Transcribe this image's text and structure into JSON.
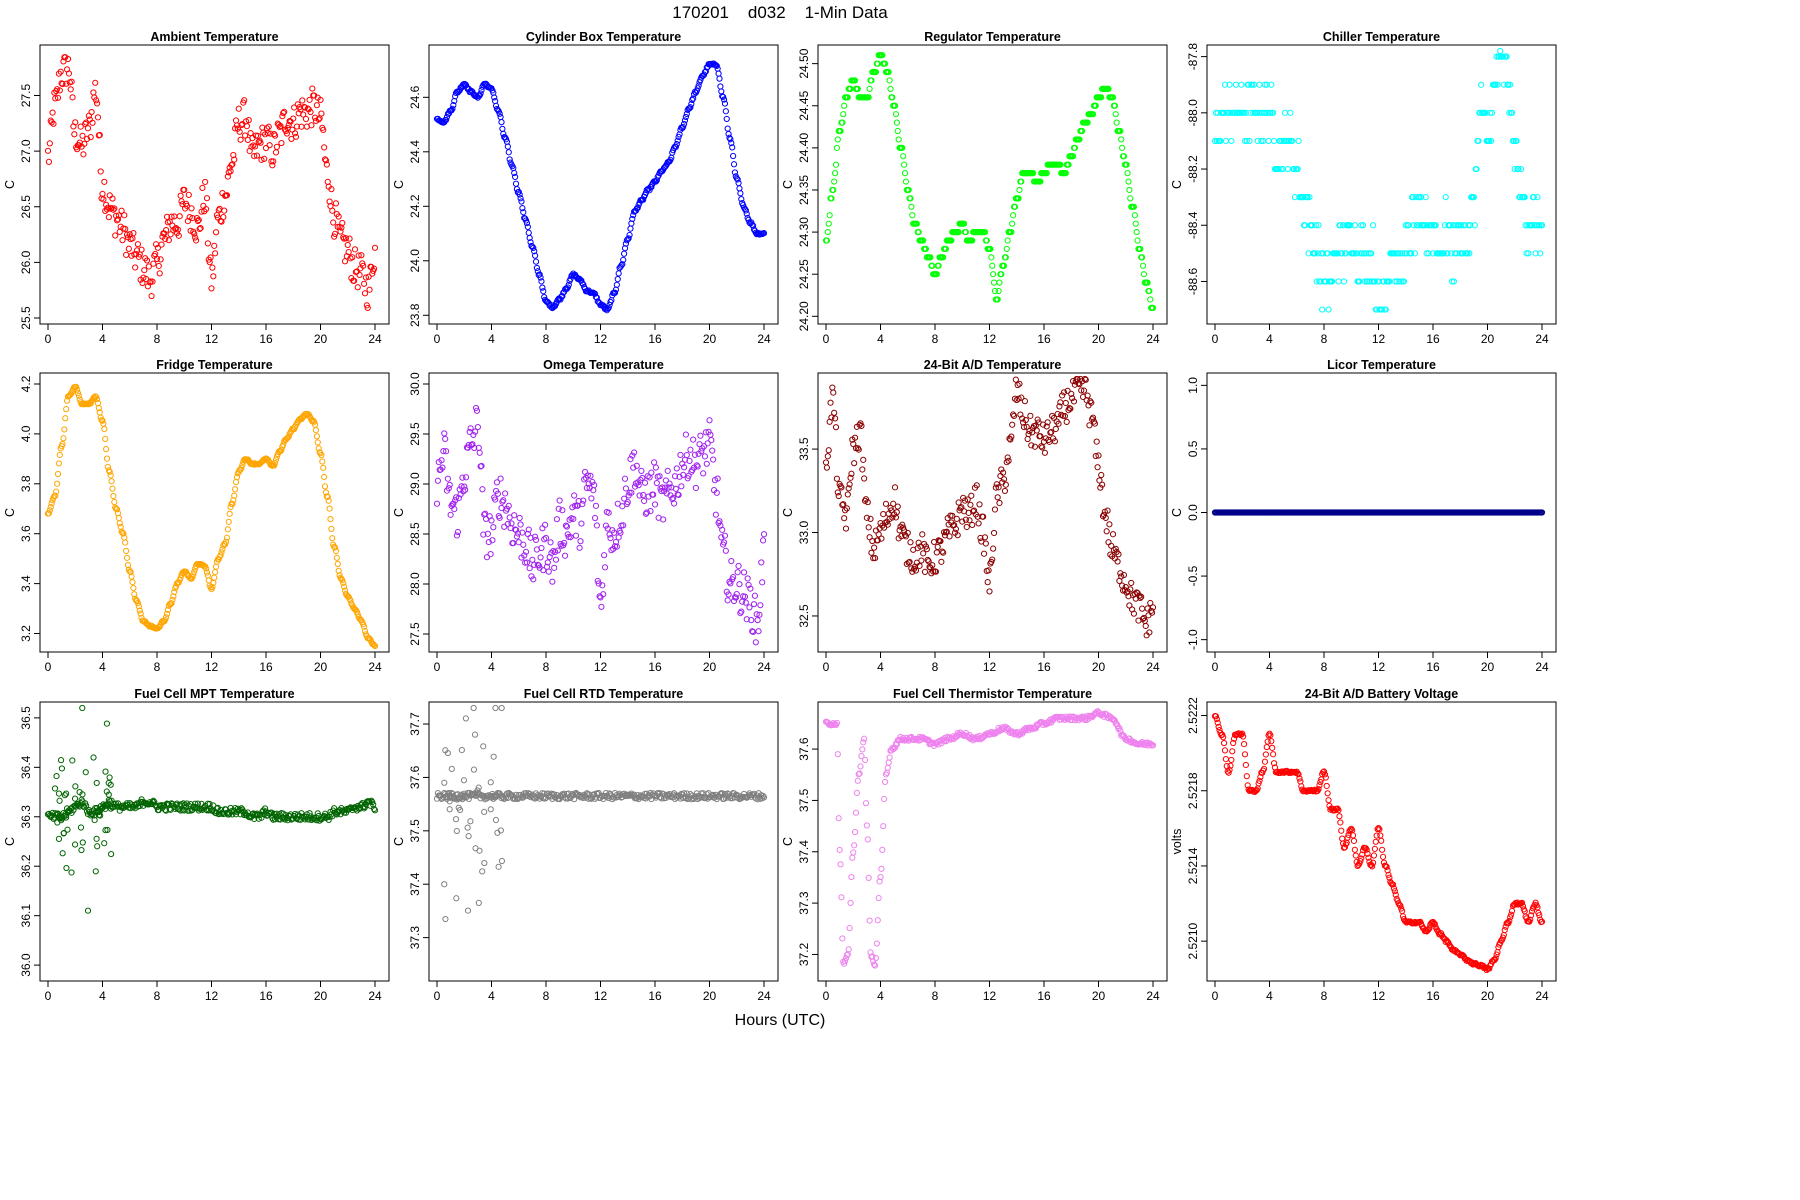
{
  "figure": {
    "title": "170201    d032    1-Min Data",
    "xlabel": "Hours (UTC)"
  },
  "chart_data": [
    {
      "type": "scatter",
      "title": "Ambient Temperature",
      "ylabel": "C",
      "color": "#ff0000",
      "xlim": [
        0,
        24
      ],
      "xticks": [
        0,
        4,
        8,
        12,
        16,
        20,
        24
      ],
      "ylim": [
        25.5,
        27.9
      ],
      "yticks": [
        "25.5",
        "26.0",
        "26.5",
        "27.0",
        "27.5"
      ],
      "x": [
        0,
        0.5,
        1,
        1.5,
        2,
        2.5,
        3,
        3.5,
        4,
        4.5,
        5,
        5.5,
        6,
        6.5,
        7,
        7.5,
        8,
        8.5,
        9,
        9.5,
        10,
        10.5,
        11,
        11.5,
        12,
        12.5,
        13,
        13.5,
        14,
        14.5,
        15,
        15.5,
        16,
        16.5,
        17,
        17.5,
        18,
        18.5,
        19,
        19.5,
        20,
        20.5,
        21,
        21.5,
        22,
        22.5,
        23,
        23.5,
        24
      ],
      "values": [
        26.95,
        27.4,
        27.7,
        27.75,
        27.15,
        27.05,
        27.2,
        27.55,
        26.7,
        26.5,
        26.4,
        26.3,
        26.15,
        26.05,
        25.95,
        25.85,
        26.0,
        26.2,
        26.35,
        26.35,
        26.55,
        26.45,
        26.3,
        26.6,
        25.85,
        26.4,
        26.6,
        26.9,
        27.25,
        27.3,
        26.95,
        27.05,
        27.1,
        27.0,
        27.15,
        27.3,
        27.25,
        27.35,
        27.35,
        27.4,
        27.3,
        26.8,
        26.4,
        26.2,
        26.1,
        25.95,
        25.9,
        25.75,
        26.1
      ],
      "noise": 0.17
    },
    {
      "type": "scatter",
      "title": "Cylinder Box Temperature",
      "ylabel": "C",
      "color": "#0000ff",
      "xlim": [
        0,
        24
      ],
      "xticks": [
        0,
        4,
        8,
        12,
        16,
        20,
        24
      ],
      "ylim": [
        23.79,
        24.77
      ],
      "yticks": [
        "23.8",
        "24.0",
        "24.2",
        "24.4",
        "24.6"
      ],
      "x": [
        0,
        0.5,
        1,
        1.5,
        2,
        2.5,
        3,
        3.5,
        4,
        4.5,
        5,
        5.5,
        6,
        6.5,
        7,
        7.5,
        8,
        8.5,
        9,
        9.5,
        10,
        10.5,
        11,
        11.5,
        12,
        12.5,
        13,
        13.5,
        14,
        14.5,
        15,
        15.5,
        16,
        16.5,
        17,
        17.5,
        18,
        18.5,
        19,
        19.5,
        20,
        20.5,
        21,
        21.5,
        22,
        22.5,
        23,
        23.5,
        24
      ],
      "values": [
        24.52,
        24.51,
        24.55,
        24.62,
        24.65,
        24.62,
        24.6,
        24.65,
        24.63,
        24.55,
        24.45,
        24.35,
        24.25,
        24.15,
        24.05,
        23.95,
        23.85,
        23.83,
        23.86,
        23.9,
        23.95,
        23.93,
        23.89,
        23.88,
        23.84,
        23.82,
        23.88,
        23.98,
        24.08,
        24.18,
        24.22,
        24.26,
        24.29,
        24.33,
        24.36,
        24.42,
        24.49,
        24.56,
        24.62,
        24.68,
        24.72,
        24.72,
        24.6,
        24.45,
        24.3,
        24.2,
        24.14,
        24.1,
        24.1
      ],
      "noise": 0.004
    },
    {
      "type": "scatter",
      "title": "Regulator Temperature",
      "ylabel": "C",
      "color": "#00ff00",
      "xlim": [
        0,
        24
      ],
      "xticks": [
        0,
        4,
        8,
        12,
        16,
        20,
        24
      ],
      "ylim": [
        24.198,
        24.515
      ],
      "yticks": [
        "24.20",
        "24.25",
        "24.30",
        "24.35",
        "24.40",
        "24.45",
        "24.50"
      ],
      "x": [
        0,
        0.5,
        1,
        1.5,
        2,
        2.5,
        3,
        3.5,
        4,
        4.5,
        5,
        5.5,
        6,
        6.5,
        7,
        7.5,
        8,
        8.5,
        9,
        9.5,
        10,
        10.5,
        11,
        11.5,
        12,
        12.5,
        13,
        13.5,
        14,
        14.5,
        15,
        15.5,
        16,
        16.5,
        17,
        17.5,
        18,
        18.5,
        19,
        19.5,
        20,
        20.5,
        21,
        21.5,
        22,
        22.5,
        23,
        23.5,
        24
      ],
      "values": [
        24.29,
        24.35,
        24.42,
        24.46,
        24.48,
        24.46,
        24.46,
        24.49,
        24.51,
        24.49,
        24.45,
        24.4,
        24.35,
        24.31,
        24.29,
        24.27,
        24.25,
        24.27,
        24.29,
        24.3,
        24.31,
        24.29,
        24.3,
        24.3,
        24.28,
        24.22,
        24.26,
        24.3,
        24.34,
        24.37,
        24.37,
        24.36,
        24.37,
        24.38,
        24.38,
        24.37,
        24.39,
        24.41,
        24.43,
        24.44,
        24.46,
        24.47,
        24.46,
        24.42,
        24.38,
        24.33,
        24.28,
        24.24,
        24.21
      ],
      "noise": 0,
      "step": 0.01
    },
    {
      "type": "scatter",
      "title": "Chiller Temperature",
      "ylabel": "C",
      "color": "#00ffff",
      "xlim": [
        0,
        24
      ],
      "xticks": [
        0,
        4,
        8,
        12,
        16,
        20,
        24
      ],
      "ylim": [
        -88.73,
        -87.78
      ],
      "yticks": [
        "-88.6",
        "-88.4",
        "-88.2",
        "-88.0",
        "-87.8"
      ],
      "x": [
        0,
        0.5,
        1,
        1.5,
        2,
        2.5,
        3,
        3.5,
        4,
        4.5,
        5,
        5.5,
        6,
        6.5,
        7,
        7.5,
        8,
        8.5,
        9,
        9.5,
        10,
        10.5,
        11,
        11.5,
        12,
        12.5,
        13,
        13.5,
        14,
        14.5,
        15,
        15.5,
        16,
        16.5,
        17,
        17.5,
        18,
        18.5,
        19,
        19.5,
        20,
        20.5,
        21,
        21.5,
        22,
        22.5,
        23,
        23.5,
        24
      ],
      "values": [
        -88.1,
        -88.0,
        -88.0,
        -88.0,
        -88.0,
        -88.0,
        -88.0,
        -88.0,
        -88.0,
        -88.1,
        -88.1,
        -88.1,
        -88.2,
        -88.3,
        -88.4,
        -88.5,
        -88.6,
        -88.6,
        -88.5,
        -88.5,
        -88.4,
        -88.5,
        -88.5,
        -88.5,
        -88.7,
        -88.6,
        -88.5,
        -88.6,
        -88.5,
        -88.4,
        -88.4,
        -88.4,
        -88.4,
        -88.5,
        -88.4,
        -88.5,
        -88.4,
        -88.5,
        -88.3,
        -88.0,
        -88.1,
        -87.9,
        -87.8,
        -87.9,
        -88.1,
        -88.3,
        -88.4,
        -88.4,
        -88.4
      ],
      "noise": 0.08,
      "step": 0.1
    },
    {
      "type": "scatter",
      "title": "Fridge Temperature",
      "ylabel": "C",
      "color": "#ffa500",
      "xlim": [
        0,
        24
      ],
      "xticks": [
        0,
        4,
        8,
        12,
        16,
        20,
        24
      ],
      "ylim": [
        3.15,
        4.22
      ],
      "yticks": [
        "3.2",
        "3.4",
        "3.6",
        "3.8",
        "4.0",
        "4.2"
      ],
      "x": [
        0,
        0.5,
        1,
        1.5,
        2,
        2.5,
        3,
        3.5,
        4,
        4.5,
        5,
        5.5,
        6,
        6.5,
        7,
        7.5,
        8,
        8.5,
        9,
        9.5,
        10,
        10.5,
        11,
        11.5,
        12,
        12.5,
        13,
        13.5,
        14,
        14.5,
        15,
        15.5,
        16,
        16.5,
        17,
        17.5,
        18,
        18.5,
        19,
        19.5,
        20,
        20.5,
        21,
        21.5,
        22,
        22.5,
        23,
        23.5,
        24
      ],
      "values": [
        3.68,
        3.75,
        3.95,
        4.15,
        4.19,
        4.12,
        4.12,
        4.15,
        4.05,
        3.85,
        3.7,
        3.6,
        3.45,
        3.33,
        3.25,
        3.23,
        3.22,
        3.25,
        3.32,
        3.4,
        3.45,
        3.42,
        3.48,
        3.47,
        3.38,
        3.5,
        3.56,
        3.72,
        3.85,
        3.9,
        3.88,
        3.88,
        3.9,
        3.87,
        3.93,
        3.98,
        4.02,
        4.06,
        4.08,
        4.05,
        3.92,
        3.75,
        3.55,
        3.42,
        3.35,
        3.3,
        3.25,
        3.18,
        3.15
      ],
      "noise": 0.003
    },
    {
      "type": "scatter",
      "title": "Omega Temperature",
      "ylabel": "C",
      "color": "#a020f0",
      "xlim": [
        0,
        24
      ],
      "xticks": [
        0,
        4,
        8,
        12,
        16,
        20,
        24
      ],
      "ylim": [
        27.38,
        30.05
      ],
      "yticks": [
        "27.5",
        "28.0",
        "28.5",
        "29.0",
        "29.5",
        "30.0"
      ],
      "x": [
        0,
        0.5,
        1,
        1.5,
        2,
        2.5,
        3,
        3.5,
        4,
        4.5,
        5,
        5.5,
        6,
        6.5,
        7,
        7.5,
        8,
        8.5,
        9,
        9.5,
        10,
        10.5,
        11,
        11.5,
        12,
        12.5,
        13,
        13.5,
        14,
        14.5,
        15,
        15.5,
        16,
        16.5,
        17,
        17.5,
        18,
        18.5,
        19,
        19.5,
        20,
        20.5,
        21,
        21.5,
        22,
        22.5,
        23,
        23.5,
        24
      ],
      "values": [
        29.0,
        29.3,
        28.8,
        28.7,
        29.1,
        29.4,
        29.6,
        28.5,
        28.5,
        28.9,
        28.8,
        28.6,
        28.5,
        28.4,
        28.2,
        28.3,
        28.4,
        28.2,
        28.6,
        28.5,
        28.7,
        28.6,
        29.0,
        28.9,
        27.8,
        28.6,
        28.5,
        28.7,
        29.0,
        29.2,
        28.9,
        28.9,
        29.0,
        28.8,
        28.9,
        29.0,
        29.2,
        29.3,
        29.2,
        29.3,
        29.4,
        28.9,
        28.3,
        28.0,
        28.0,
        27.9,
        27.8,
        27.6,
        28.3
      ],
      "noise": 0.24
    },
    {
      "type": "scatter",
      "title": "24-Bit A/D Temperature",
      "ylabel": "C",
      "color": "#8b0000",
      "xlim": [
        0,
        24
      ],
      "xticks": [
        0,
        4,
        8,
        12,
        16,
        20,
        24
      ],
      "ylim": [
        32.32,
        33.92
      ],
      "yticks": [
        "32.5",
        "33.0",
        "33.5"
      ],
      "x": [
        0,
        0.5,
        1,
        1.5,
        2,
        2.5,
        3,
        3.5,
        4,
        4.5,
        5,
        5.5,
        6,
        6.5,
        7,
        7.5,
        8,
        8.5,
        9,
        9.5,
        10,
        10.5,
        11,
        11.5,
        12,
        12.5,
        13,
        13.5,
        14,
        14.5,
        15,
        15.5,
        16,
        16.5,
        17,
        17.5,
        18,
        18.5,
        19,
        19.5,
        20,
        20.5,
        21,
        21.5,
        22,
        22.5,
        23,
        23.5,
        24
      ],
      "values": [
        33.45,
        33.8,
        33.2,
        33.1,
        33.5,
        33.6,
        33.1,
        32.9,
        33.0,
        33.1,
        33.2,
        33.0,
        32.9,
        32.85,
        32.9,
        32.8,
        32.85,
        32.9,
        33.0,
        33.05,
        33.15,
        33.1,
        33.2,
        33.0,
        32.7,
        33.2,
        33.3,
        33.5,
        33.85,
        33.7,
        33.6,
        33.6,
        33.55,
        33.6,
        33.65,
        33.75,
        33.8,
        33.85,
        33.85,
        33.7,
        33.4,
        33.1,
        32.9,
        32.8,
        32.7,
        32.6,
        32.55,
        32.45,
        32.55
      ],
      "noise": 0.1
    },
    {
      "type": "scatter",
      "title": "Licor Temperature",
      "ylabel": "C",
      "color": "#00008b",
      "xlim": [
        0,
        24
      ],
      "xticks": [
        0,
        4,
        8,
        12,
        16,
        20,
        24
      ],
      "ylim": [
        -1.05,
        1.05
      ],
      "yticks": [
        "-1.0",
        "-0.5",
        "0.0",
        "0.5",
        "1.0"
      ],
      "x": [
        0,
        24
      ],
      "values": [
        0,
        0
      ],
      "noise": 0
    },
    {
      "type": "scatter",
      "title": "Fuel Cell MPT Temperature",
      "ylabel": "C",
      "color": "#006400",
      "xlim": [
        0,
        24
      ],
      "xticks": [
        0,
        4,
        8,
        12,
        16,
        20,
        24
      ],
      "ylim": [
        35.98,
        36.52
      ],
      "yticks": [
        "36.0",
        "36.1",
        "36.2",
        "36.3",
        "36.4",
        "36.5"
      ],
      "x": [
        0,
        0.5,
        1,
        1.5,
        2,
        2.5,
        3,
        3.5,
        4,
        4.5,
        5,
        5.5,
        6,
        6.5,
        7,
        7.5,
        8,
        8.5,
        9,
        9.5,
        10,
        10.5,
        11,
        11.5,
        12,
        12.5,
        13,
        13.5,
        14,
        14.5,
        15,
        15.5,
        16,
        16.5,
        17,
        17.5,
        18,
        18.5,
        19,
        19.5,
        20,
        20.5,
        21,
        21.5,
        22,
        22.5,
        23,
        23.5,
        24
      ],
      "values": [
        36.3,
        36.3,
        36.3,
        36.31,
        36.32,
        36.33,
        36.31,
        36.31,
        36.32,
        36.33,
        36.32,
        36.32,
        36.32,
        36.32,
        36.33,
        36.33,
        36.32,
        36.32,
        36.32,
        36.32,
        36.32,
        36.32,
        36.32,
        36.32,
        36.32,
        36.31,
        36.31,
        36.31,
        36.31,
        36.31,
        36.3,
        36.3,
        36.31,
        36.3,
        36.3,
        36.3,
        36.3,
        36.3,
        36.3,
        36.3,
        36.3,
        36.3,
        36.31,
        36.31,
        36.31,
        36.32,
        36.32,
        36.33,
        36.32
      ],
      "noise": 0.008,
      "scatterRange": [
        0.5,
        4.8
      ],
      "scatterSpread": 0.3
    },
    {
      "type": "scatter",
      "title": "Fuel Cell RTD Temperature",
      "ylabel": "C",
      "color": "#808080",
      "xlim": [
        0,
        24
      ],
      "xticks": [
        0,
        4,
        8,
        12,
        16,
        20,
        24
      ],
      "ylim": [
        37.23,
        37.73
      ],
      "yticks": [
        "37.3",
        "37.4",
        "37.5",
        "37.6",
        "37.7"
      ],
      "x": [
        0,
        4,
        8,
        12,
        16,
        20,
        24
      ],
      "values": [
        37.565,
        37.565,
        37.565,
        37.565,
        37.565,
        37.565,
        37.565
      ],
      "noise": 0.006,
      "scatterRange": [
        0.5,
        4.8
      ],
      "scatterSpread": 0.35
    },
    {
      "type": "scatter",
      "title": "Fuel Cell Thermistor Temperature",
      "ylabel": "C",
      "color": "#ee82ee",
      "xlim": [
        0,
        24
      ],
      "xticks": [
        0,
        4,
        8,
        12,
        16,
        20,
        24
      ],
      "ylim": [
        37.16,
        37.68
      ],
      "yticks": [
        "37.2",
        "37.3",
        "37.4",
        "37.5",
        "37.6"
      ],
      "x": [
        0,
        0.5,
        0.8,
        1.0,
        1.3,
        1.6,
        2.0,
        2.4,
        2.8,
        3.0,
        3.3,
        3.6,
        4.0,
        4.4,
        4.8,
        5.5,
        6,
        7,
        8,
        9,
        10,
        11,
        12,
        13,
        14,
        15,
        16,
        17,
        18,
        19,
        20,
        21,
        22,
        23,
        24
      ],
      "values": [
        37.65,
        37.65,
        37.65,
        37.4,
        37.18,
        37.2,
        37.4,
        37.55,
        37.62,
        37.45,
        37.2,
        37.18,
        37.35,
        37.55,
        37.6,
        37.62,
        37.62,
        37.62,
        37.61,
        37.62,
        37.63,
        37.62,
        37.63,
        37.64,
        37.63,
        37.64,
        37.65,
        37.66,
        37.66,
        37.66,
        37.67,
        37.66,
        37.62,
        37.61,
        37.61
      ],
      "noise": 0.004
    },
    {
      "type": "scatter",
      "title": "24-Bit A/D Battery Voltage",
      "ylabel": "volts",
      "color": "#ff0000",
      "xlim": [
        0,
        24
      ],
      "xticks": [
        0,
        4,
        8,
        12,
        16,
        20,
        24
      ],
      "ylim": [
        2.52082,
        2.52224
      ],
      "yticks": [
        "2.5210",
        "2.5214",
        "2.5218",
        "2.5222"
      ],
      "x": [
        0,
        0.5,
        1,
        1.5,
        2,
        2.5,
        3,
        3.5,
        4,
        4.5,
        5,
        5.5,
        6,
        6.5,
        7,
        7.5,
        8,
        8.5,
        9,
        9.5,
        10,
        10.5,
        11,
        11.5,
        12,
        12.5,
        13,
        13.5,
        14,
        14.5,
        15,
        15.5,
        16,
        16.5,
        17,
        17.5,
        18,
        18.5,
        19,
        19.5,
        20,
        20.5,
        21,
        21.5,
        22,
        22.5,
        23,
        23.5,
        24
      ],
      "values": [
        2.5222,
        2.5221,
        2.5219,
        2.5221,
        2.5221,
        2.5218,
        2.5218,
        2.5219,
        2.5221,
        2.5219,
        2.5219,
        2.5219,
        2.5219,
        2.5218,
        2.5218,
        2.5218,
        2.5219,
        2.5217,
        2.5217,
        2.5215,
        2.5216,
        2.5214,
        2.5215,
        2.5214,
        2.5216,
        2.5214,
        2.5213,
        2.5212,
        2.5211,
        2.5211,
        2.5211,
        2.52105,
        2.5211,
        2.52104,
        2.521,
        2.52095,
        2.52093,
        2.5209,
        2.52088,
        2.52087,
        2.52085,
        2.5209,
        2.521,
        2.5211,
        2.5212,
        2.5212,
        2.5211,
        2.5212,
        2.5211
      ],
      "noise": 6e-06
    }
  ]
}
